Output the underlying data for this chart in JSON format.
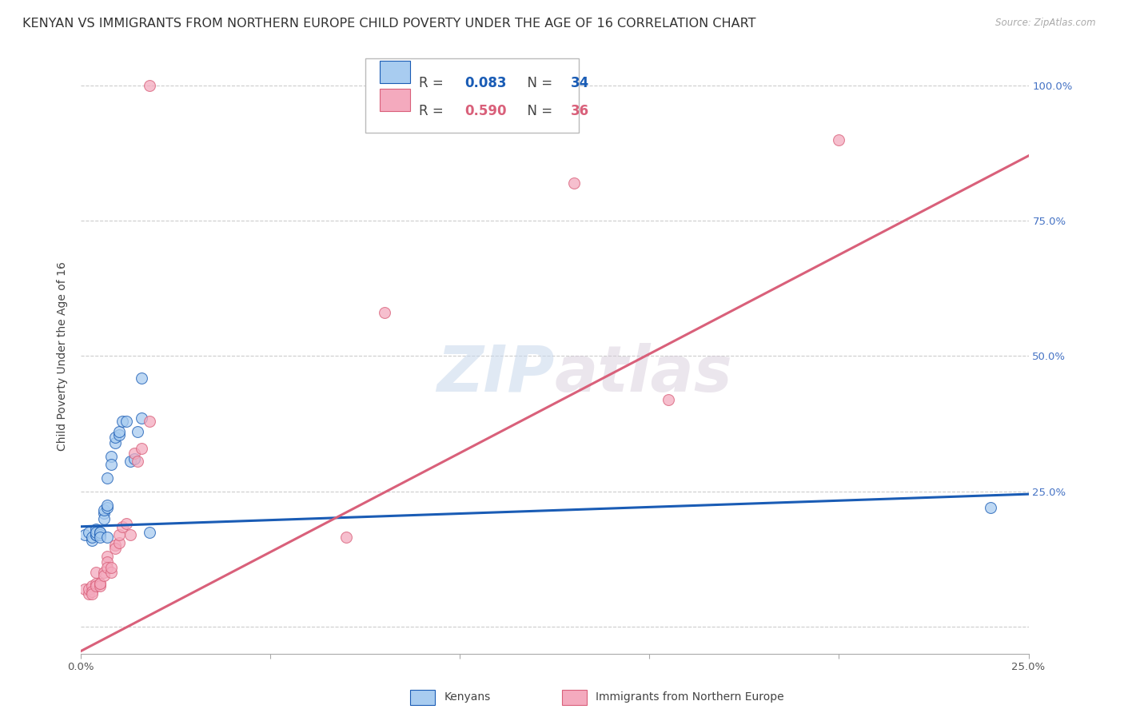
{
  "title": "KENYAN VS IMMIGRANTS FROM NORTHERN EUROPE CHILD POVERTY UNDER THE AGE OF 16 CORRELATION CHART",
  "source": "Source: ZipAtlas.com",
  "ylabel": "Child Poverty Under the Age of 16",
  "xlim": [
    0.0,
    0.25
  ],
  "ylim": [
    -0.05,
    1.05
  ],
  "blue_R": "0.083",
  "blue_N": "34",
  "pink_R": "0.590",
  "pink_N": "36",
  "legend_label1": "Kenyans",
  "legend_label2": "Immigrants from Northern Europe",
  "blue_color": "#A8CCF0",
  "pink_color": "#F4AABE",
  "blue_line_color": "#1A5CB5",
  "pink_line_color": "#D9607A",
  "watermark_zip": "ZIP",
  "watermark_atlas": "atlas",
  "grid_color": "#CCCCCC",
  "bg_color": "#FFFFFF",
  "title_fontsize": 11.5,
  "axis_label_fontsize": 10,
  "tick_fontsize": 9.5,
  "legend_fontsize": 12,
  "marker_size": 100,
  "blue_scatter_x": [
    0.001,
    0.002,
    0.003,
    0.003,
    0.004,
    0.004,
    0.004,
    0.004,
    0.005,
    0.005,
    0.005,
    0.005,
    0.006,
    0.006,
    0.006,
    0.007,
    0.007,
    0.007,
    0.007,
    0.008,
    0.008,
    0.009,
    0.009,
    0.01,
    0.01,
    0.011,
    0.012,
    0.013,
    0.014,
    0.015,
    0.016,
    0.016,
    0.24,
    0.018
  ],
  "blue_scatter_y": [
    0.17,
    0.175,
    0.16,
    0.165,
    0.17,
    0.17,
    0.18,
    0.175,
    0.175,
    0.17,
    0.175,
    0.165,
    0.21,
    0.2,
    0.215,
    0.22,
    0.225,
    0.275,
    0.165,
    0.315,
    0.3,
    0.34,
    0.35,
    0.355,
    0.36,
    0.38,
    0.38,
    0.305,
    0.31,
    0.36,
    0.385,
    0.46,
    0.22,
    0.175
  ],
  "pink_scatter_x": [
    0.001,
    0.002,
    0.002,
    0.003,
    0.003,
    0.003,
    0.004,
    0.004,
    0.004,
    0.005,
    0.005,
    0.005,
    0.006,
    0.006,
    0.007,
    0.007,
    0.007,
    0.008,
    0.008,
    0.009,
    0.009,
    0.01,
    0.01,
    0.011,
    0.012,
    0.013,
    0.014,
    0.015,
    0.016,
    0.018,
    0.018,
    0.07,
    0.08,
    0.13,
    0.155,
    0.2
  ],
  "pink_scatter_y": [
    0.07,
    0.06,
    0.07,
    0.075,
    0.065,
    0.06,
    0.08,
    0.075,
    0.1,
    0.08,
    0.075,
    0.08,
    0.1,
    0.095,
    0.13,
    0.12,
    0.11,
    0.1,
    0.11,
    0.15,
    0.145,
    0.155,
    0.17,
    0.185,
    0.19,
    0.17,
    0.32,
    0.305,
    0.33,
    0.38,
    1.0,
    0.165,
    0.58,
    0.82,
    0.42,
    0.9
  ],
  "blue_line_x0": 0.0,
  "blue_line_x1": 0.25,
  "blue_line_y0": 0.185,
  "blue_line_y1": 0.245,
  "pink_line_x0": 0.0,
  "pink_line_x1": 0.25,
  "pink_line_y0": -0.045,
  "pink_line_y1": 0.87
}
